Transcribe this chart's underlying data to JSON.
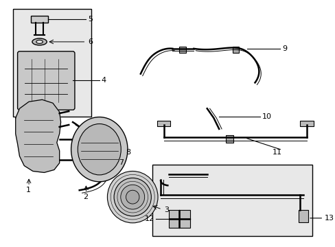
{
  "background_color": "#ffffff",
  "line_color": "#000000",
  "box_fill": "#e8e8e8",
  "part_fill": "#c8c8c8",
  "fig_width": 4.89,
  "fig_height": 3.6,
  "dpi": 100
}
